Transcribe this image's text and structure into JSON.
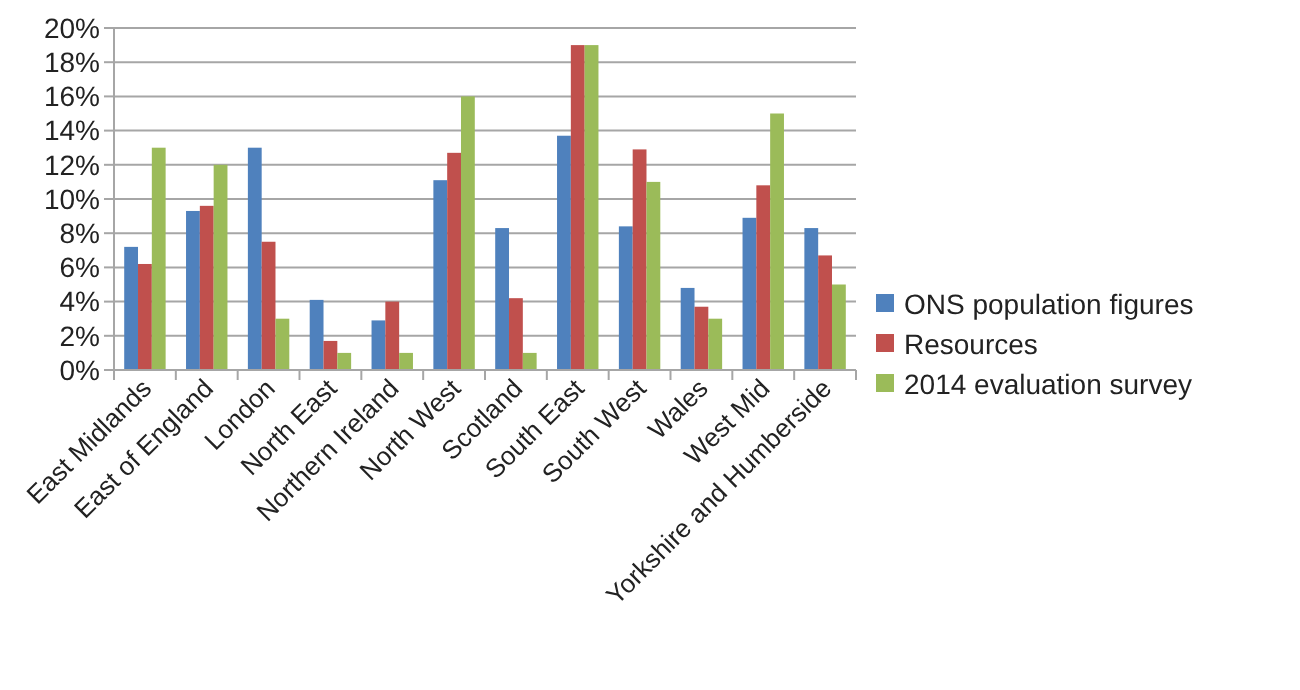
{
  "chart_data": {
    "type": "bar",
    "categories": [
      "East Midlands",
      "East of England",
      "London",
      "North East",
      "Northern Ireland",
      "North West",
      "Scotland",
      "South East",
      "South West",
      "Wales",
      "West Mid",
      "Yorkshire and Humberside"
    ],
    "series": [
      {
        "name": "ONS population figures",
        "color": "#4f81bd",
        "values": [
          7.2,
          9.3,
          13,
          4.1,
          2.9,
          11.1,
          8.3,
          13.7,
          8.4,
          4.8,
          8.9,
          8.3
        ]
      },
      {
        "name": "Resources",
        "color": "#c0504d",
        "values": [
          6.2,
          9.6,
          7.5,
          1.7,
          4,
          12.7,
          4.2,
          19,
          12.9,
          3.7,
          10.8,
          6.7
        ]
      },
      {
        "name": "2014 evaluation survey",
        "color": "#9bbb59",
        "values": [
          13,
          12,
          3,
          1,
          1,
          16,
          1,
          19,
          11,
          3,
          15,
          5
        ]
      }
    ],
    "ylim": [
      0,
      20
    ],
    "yticks": [
      {
        "value": 0,
        "label": "0%"
      },
      {
        "value": 2,
        "label": "2%"
      },
      {
        "value": 4,
        "label": "4%"
      },
      {
        "value": 6,
        "label": "6%"
      },
      {
        "value": 8,
        "label": "8%"
      },
      {
        "value": 10,
        "label": "10%"
      },
      {
        "value": 12,
        "label": "12%"
      },
      {
        "value": 14,
        "label": "14%"
      },
      {
        "value": 16,
        "label": "16%"
      },
      {
        "value": 18,
        "label": "18%"
      },
      {
        "value": 20,
        "label": "20%"
      }
    ],
    "grid": "y",
    "legend": "right"
  }
}
